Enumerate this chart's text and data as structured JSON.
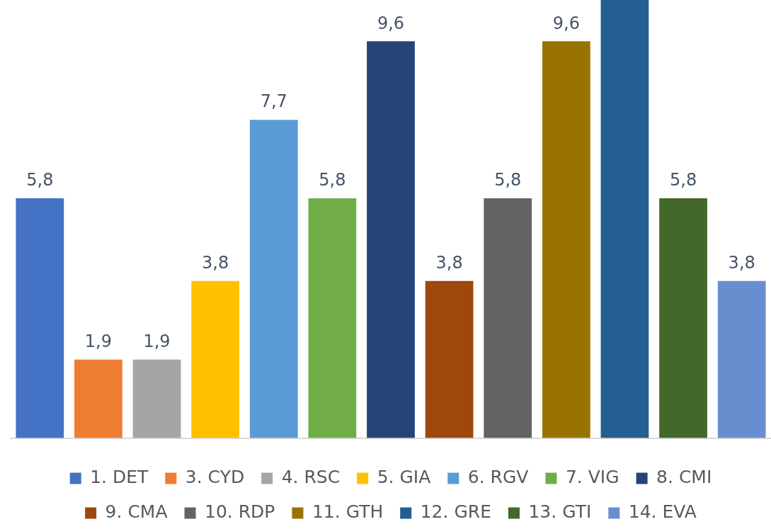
{
  "chart_data": {
    "type": "bar",
    "categories": [
      null,
      null,
      null,
      null,
      null,
      null,
      null,
      null,
      null,
      null,
      null,
      null,
      null
    ],
    "series": [
      {
        "name": "1. DET",
        "color": "#4472c4",
        "values": [
          5.8,
          null,
          null,
          null,
          null,
          null,
          null,
          null,
          null,
          null,
          null,
          null,
          null
        ],
        "value_labels": [
          "5,8",
          null,
          null,
          null,
          null,
          null,
          null,
          null,
          null,
          null,
          null,
          null,
          null
        ]
      },
      {
        "name": "3. CYD",
        "color": "#ed7d31",
        "values": [
          null,
          1.9,
          null,
          null,
          null,
          null,
          null,
          null,
          null,
          null,
          null,
          null,
          null
        ],
        "value_labels": [
          null,
          "1,9",
          null,
          null,
          null,
          null,
          null,
          null,
          null,
          null,
          null,
          null,
          null
        ]
      },
      {
        "name": "4. RSC",
        "color": "#a5a5a5",
        "values": [
          null,
          null,
          1.9,
          null,
          null,
          null,
          null,
          null,
          null,
          null,
          null,
          null,
          null
        ],
        "value_labels": [
          null,
          null,
          "1,9",
          null,
          null,
          null,
          null,
          null,
          null,
          null,
          null,
          null,
          null
        ]
      },
      {
        "name": "5. GIA",
        "color": "#ffc000",
        "values": [
          null,
          null,
          null,
          3.8,
          null,
          null,
          null,
          null,
          null,
          null,
          null,
          null,
          null
        ],
        "value_labels": [
          null,
          null,
          null,
          "3,8",
          null,
          null,
          null,
          null,
          null,
          null,
          null,
          null,
          null
        ]
      },
      {
        "name": "6. RGV",
        "color": "#5b9bd5",
        "values": [
          null,
          null,
          null,
          null,
          7.7,
          null,
          null,
          null,
          null,
          null,
          null,
          null,
          null
        ],
        "value_labels": [
          null,
          null,
          null,
          null,
          "7,7",
          null,
          null,
          null,
          null,
          null,
          null,
          null,
          null
        ]
      },
      {
        "name": "7. VIG",
        "color": "#70ad47",
        "values": [
          null,
          null,
          null,
          null,
          null,
          5.8,
          null,
          null,
          null,
          null,
          null,
          null,
          null
        ],
        "value_labels": [
          null,
          null,
          null,
          null,
          null,
          "5,8",
          null,
          null,
          null,
          null,
          null,
          null,
          null
        ]
      },
      {
        "name": "8. CMI",
        "color": "#264478",
        "values": [
          null,
          null,
          null,
          null,
          null,
          null,
          9.6,
          null,
          null,
          null,
          null,
          null,
          null
        ],
        "value_labels": [
          null,
          null,
          null,
          null,
          null,
          null,
          "9,6",
          null,
          null,
          null,
          null,
          null,
          null
        ]
      },
      {
        "name": "9. CMA",
        "color": "#9e480e",
        "values": [
          null,
          null,
          null,
          null,
          null,
          null,
          null,
          3.8,
          null,
          null,
          null,
          null,
          null
        ],
        "value_labels": [
          null,
          null,
          null,
          null,
          null,
          null,
          null,
          "3,8",
          null,
          null,
          null,
          null,
          null
        ]
      },
      {
        "name": "10. RDP",
        "color": "#636363",
        "values": [
          null,
          null,
          null,
          null,
          null,
          null,
          null,
          null,
          5.8,
          null,
          null,
          null,
          null
        ],
        "value_labels": [
          null,
          null,
          null,
          null,
          null,
          null,
          null,
          null,
          "5,8",
          null,
          null,
          null,
          null
        ]
      },
      {
        "name": "11. GTH",
        "color": "#997300",
        "values": [
          null,
          null,
          null,
          null,
          null,
          null,
          null,
          null,
          null,
          9.6,
          null,
          null,
          null
        ],
        "value_labels": [
          null,
          null,
          null,
          null,
          null,
          null,
          null,
          null,
          null,
          "9,6",
          null,
          null,
          null
        ]
      },
      {
        "name": "12. GRE",
        "color": "#255e91",
        "values": [
          null,
          null,
          null,
          null,
          null,
          null,
          null,
          null,
          null,
          null,
          10.6,
          null,
          null
        ]
      },
      {
        "name": "13. GTI",
        "color": "#43682b",
        "values": [
          null,
          null,
          null,
          null,
          null,
          null,
          null,
          null,
          null,
          null,
          null,
          5.8,
          null
        ],
        "value_labels": [
          null,
          null,
          null,
          null,
          null,
          null,
          null,
          null,
          null,
          null,
          null,
          "5,8",
          null
        ]
      },
      {
        "name": "14. EVA",
        "color": "#698ed0",
        "values": [
          null,
          null,
          null,
          null,
          null,
          null,
          null,
          null,
          null,
          null,
          null,
          null,
          3.8
        ],
        "value_labels": [
          null,
          null,
          null,
          null,
          null,
          null,
          null,
          null,
          null,
          null,
          null,
          null,
          "3,8"
        ]
      }
    ],
    "stacked": true,
    "grid": false,
    "legend": "bottom"
  }
}
